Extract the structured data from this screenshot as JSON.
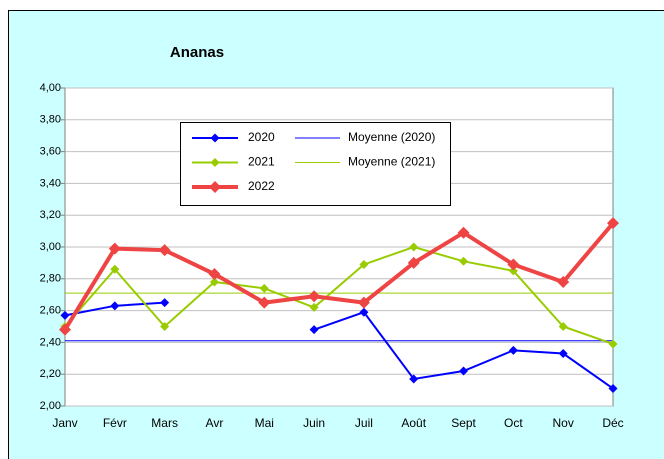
{
  "chart_data": {
    "type": "line",
    "title": "Ananas",
    "categories": [
      "Janv",
      "Févr",
      "Mars",
      "Avr",
      "Mai",
      "Juin",
      "Juil",
      "Août",
      "Sept",
      "Oct",
      "Nov",
      "Déc"
    ],
    "series": [
      {
        "name": "2020",
        "color": "#0000ff",
        "values": [
          2.57,
          2.63,
          2.65,
          null,
          null,
          2.48,
          2.59,
          2.17,
          2.22,
          2.35,
          2.33,
          2.11
        ]
      },
      {
        "name": "2021",
        "color": "#99cc00",
        "values": [
          2.5,
          2.86,
          2.5,
          2.78,
          2.74,
          2.62,
          2.89,
          3.0,
          2.91,
          2.85,
          2.5,
          2.39
        ]
      },
      {
        "name": "2022",
        "color": "#ee4444",
        "values": [
          2.48,
          2.99,
          2.98,
          2.83,
          2.65,
          2.69,
          2.65,
          2.9,
          3.09,
          2.89,
          2.78,
          3.15
        ]
      }
    ],
    "trendlines": [
      {
        "name": "Moyenne (2020)",
        "color": "#0000ff",
        "value": 2.41
      },
      {
        "name": "Moyenne (2021)",
        "color": "#99cc00",
        "value": 2.71
      }
    ],
    "ylim": [
      2,
      4
    ],
    "yticks": [
      {
        "value": 2,
        "label": "2,00"
      },
      {
        "value": 2.2,
        "label": "2,20"
      },
      {
        "value": 2.4,
        "label": "2,40"
      },
      {
        "value": 2.6,
        "label": "2,60"
      },
      {
        "value": 2.8,
        "label": "2,80"
      },
      {
        "value": 3,
        "label": "3,00"
      },
      {
        "value": 3.2,
        "label": "3,20"
      },
      {
        "value": 3.4,
        "label": "3,40"
      },
      {
        "value": 3.6,
        "label": "3,60"
      },
      {
        "value": 3.8,
        "label": "3,80"
      },
      {
        "value": 4,
        "label": "4,00"
      }
    ],
    "grid": true
  }
}
